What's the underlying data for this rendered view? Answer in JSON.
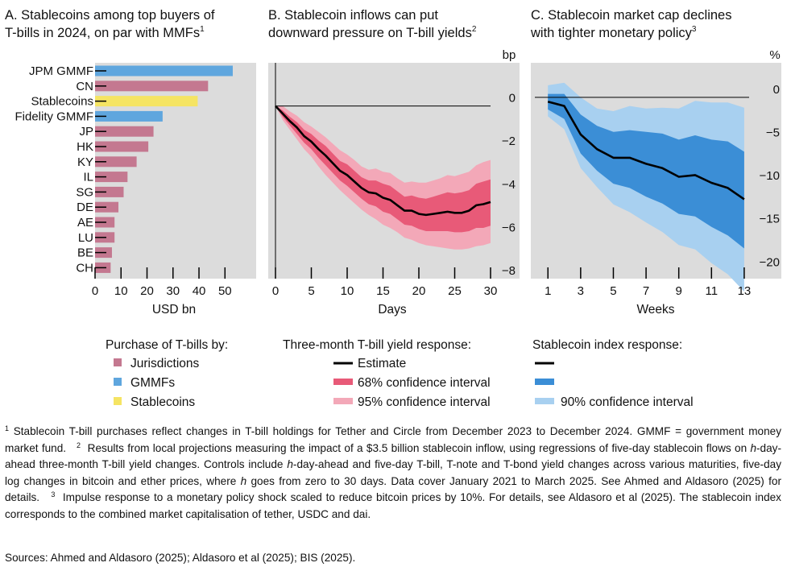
{
  "colors": {
    "jurisdictions": "#c47890",
    "gmmf": "#5fa6de",
    "stablecoins": "#f5e463",
    "panel_bg": "#dcdcdc",
    "estimate": "#000000",
    "ci68_b": "#e85a78",
    "ci95_b": "#f3a8b8",
    "ci68_c": "#3b8ed6",
    "ci90_c": "#a8d0f0"
  },
  "panels": {
    "a": {
      "title_line1": "A. Stablecoins among top buyers of",
      "title_line2": "T-bills in 2024, on par with MMFs",
      "title_sup": "1"
    },
    "b": {
      "title_line1": "B. Stablecoin inflows can put",
      "title_line2": "downward pressure on T-bill yields",
      "title_sup": "2",
      "unit": "bp"
    },
    "c": {
      "title_line1": "C. Stablecoin market cap declines",
      "title_line2": "with tighter monetary policy",
      "title_sup": "3",
      "unit": "%"
    }
  },
  "chart_data": [
    {
      "type": "bar",
      "orientation": "horizontal",
      "categories": [
        "JPM GMMF",
        "CN",
        "Stablecoins",
        "Fidelity GMMF",
        "JP",
        "HK",
        "KY",
        "IL",
        "SG",
        "DE",
        "AE",
        "LU",
        "BE",
        "CH"
      ],
      "values": [
        53,
        43.5,
        39.5,
        26,
        22.5,
        20.5,
        16,
        12.5,
        11,
        9,
        7.5,
        7.5,
        6.5,
        6
      ],
      "groups": [
        "GMMFs",
        "Jurisdictions",
        "Stablecoins",
        "GMMFs",
        "Jurisdictions",
        "Jurisdictions",
        "Jurisdictions",
        "Jurisdictions",
        "Jurisdictions",
        "Jurisdictions",
        "Jurisdictions",
        "Jurisdictions",
        "Jurisdictions",
        "Jurisdictions"
      ],
      "xlabel": "USD bn",
      "xlim": [
        0,
        62
      ],
      "xticks": [
        0,
        10,
        20,
        30,
        40,
        50
      ],
      "grid": false,
      "legend_title": "Purchase of T-bills by:",
      "legend": [
        "Jurisdictions",
        "GMMFs",
        "Stablecoins"
      ]
    },
    {
      "type": "line",
      "xlabel": "Days",
      "unit": "bp",
      "xlim": [
        0,
        30
      ],
      "ylim": [
        -8,
        2
      ],
      "xticks": [
        0,
        5,
        10,
        15,
        20,
        25,
        30
      ],
      "yticks": [
        0,
        -2,
        -4,
        -6,
        -8
      ],
      "x": [
        0,
        1,
        2,
        3,
        4,
        5,
        6,
        7,
        8,
        9,
        10,
        11,
        12,
        13,
        14,
        15,
        16,
        17,
        18,
        19,
        20,
        21,
        22,
        23,
        24,
        25,
        26,
        27,
        28,
        29,
        30
      ],
      "series": [
        {
          "name": "Estimate",
          "values": [
            0,
            -0.35,
            -0.7,
            -1.0,
            -1.4,
            -1.65,
            -2.0,
            -2.3,
            -2.65,
            -3.0,
            -3.2,
            -3.5,
            -3.8,
            -4.0,
            -4.05,
            -4.25,
            -4.35,
            -4.6,
            -4.85,
            -4.85,
            -5.0,
            -5.05,
            -5.0,
            -4.95,
            -4.9,
            -4.95,
            -4.95,
            -4.85,
            -4.6,
            -4.55,
            -4.45
          ]
        },
        {
          "name": "68% confidence interval",
          "lower": [
            0,
            -0.5,
            -0.9,
            -1.3,
            -1.7,
            -2.0,
            -2.4,
            -2.75,
            -3.1,
            -3.45,
            -3.7,
            -4.0,
            -4.3,
            -4.55,
            -4.65,
            -4.9,
            -5.0,
            -5.25,
            -5.5,
            -5.55,
            -5.7,
            -5.8,
            -5.8,
            -5.8,
            -5.8,
            -5.85,
            -5.85,
            -5.8,
            -5.65,
            -5.65,
            -5.55
          ],
          "upper": [
            0,
            -0.2,
            -0.5,
            -0.75,
            -1.1,
            -1.3,
            -1.6,
            -1.85,
            -2.2,
            -2.55,
            -2.7,
            -3.0,
            -3.3,
            -3.45,
            -3.45,
            -3.6,
            -3.7,
            -3.95,
            -4.2,
            -4.15,
            -4.25,
            -4.3,
            -4.2,
            -4.1,
            -4.0,
            -4.05,
            -4.0,
            -3.9,
            -3.6,
            -3.5,
            -3.4
          ]
        },
        {
          "name": "95% confidence interval",
          "lower": [
            0,
            -0.65,
            -1.1,
            -1.55,
            -2.0,
            -2.35,
            -2.8,
            -3.2,
            -3.55,
            -3.9,
            -4.2,
            -4.5,
            -4.8,
            -5.05,
            -5.25,
            -5.5,
            -5.65,
            -5.85,
            -6.1,
            -6.2,
            -6.35,
            -6.45,
            -6.5,
            -6.55,
            -6.6,
            -6.65,
            -6.65,
            -6.6,
            -6.5,
            -6.45,
            -6.35
          ],
          "upper": [
            0,
            0,
            -0.25,
            -0.45,
            -0.75,
            -0.95,
            -1.2,
            -1.45,
            -1.75,
            -2.05,
            -2.25,
            -2.5,
            -2.8,
            -2.95,
            -2.9,
            -3.05,
            -3.1,
            -3.35,
            -3.55,
            -3.5,
            -3.55,
            -3.55,
            -3.45,
            -3.35,
            -3.2,
            -3.25,
            -3.15,
            -3.05,
            -2.75,
            -2.6,
            -2.5
          ]
        }
      ],
      "legend_title": "Three-month T-bill yield response:",
      "grid": false
    },
    {
      "type": "line",
      "xlabel": "Weeks",
      "unit": "%",
      "xlim": [
        0.2,
        13.3
      ],
      "ylim": [
        -21,
        4
      ],
      "xticks": [
        1,
        3,
        5,
        7,
        9,
        11,
        13
      ],
      "yticks": [
        0,
        -5,
        -10,
        -15,
        -20
      ],
      "x": [
        1,
        2,
        3,
        4,
        5,
        6,
        7,
        8,
        9,
        10,
        11,
        12,
        13
      ],
      "series": [
        {
          "name": "Estimate",
          "values": [
            -0.5,
            -1.0,
            -4.3,
            -6.0,
            -7.0,
            -7.0,
            -7.7,
            -8.2,
            -9.2,
            -9.0,
            -9.9,
            -10.5,
            -11.8
          ]
        },
        {
          "name": "",
          "lower": [
            -1.4,
            -2.5,
            -6.5,
            -8.5,
            -10.0,
            -10.5,
            -11.5,
            -12.3,
            -13.5,
            -13.8,
            -15.0,
            -16.0,
            -17.5
          ],
          "upper": [
            0.4,
            0.4,
            -2.0,
            -3.3,
            -4.0,
            -3.8,
            -4.0,
            -4.2,
            -4.9,
            -4.4,
            -4.9,
            -5.1,
            -6.3
          ]
        },
        {
          "name": "90% confidence interval",
          "lower": [
            -2.2,
            -3.7,
            -8.2,
            -10.4,
            -12.4,
            -13.3,
            -14.5,
            -15.6,
            -17.1,
            -17.6,
            -19.2,
            -20.5,
            -22.5
          ],
          "upper": [
            1.4,
            1.7,
            0.0,
            -1.3,
            -1.6,
            -1.0,
            -1.3,
            -1.2,
            -1.3,
            -0.4,
            -0.6,
            -0.6,
            -1.2
          ]
        }
      ],
      "legend_title": "Stablecoin index response:",
      "grid": false
    }
  ],
  "footnotes": {
    "n1_sup": "1",
    "n1": "Stablecoin T-bill purchases reflect changes in T-bill holdings for Tether and Circle from December 2023 to December 2024. GMMF = government money market fund.",
    "n2_sup": "2",
    "n2_a": "Results from local projections measuring the impact of a $3.5 billion stablecoin inflow, using regressions of five-day stablecoin flows on ",
    "h": "h",
    "n2_b": "-day-ahead three-month T-bill yield changes. Controls include ",
    "n2_c": "-day-ahead and five-day T-bill, T-note and T-bond yield changes across various maturities, five-day log changes in bitcoin and ether prices, where ",
    "n2_d": " goes from zero to 30 days. Data cover January 2021 to March 2025. See Ahmed and Aldasoro (2025) for details.",
    "n3_sup": "3",
    "n3": "Impulse response to a monetary policy shock scaled to reduce bitcoin prices by 10%. For details, see Aldasoro et al (2025). The stablecoin index corresponds to the combined market capitalisation of tether, USDC and dai."
  },
  "sources": "Sources: Ahmed and Aldasoro (2025); Aldasoro et al (2025); BIS (2025)."
}
